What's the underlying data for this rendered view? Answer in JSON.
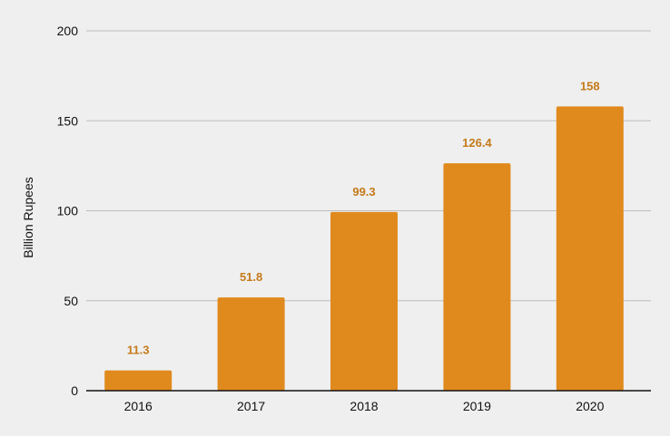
{
  "chart_data": {
    "type": "bar",
    "categories": [
      "2016",
      "2017",
      "2018",
      "2019",
      "2020"
    ],
    "values": [
      11.3,
      51.8,
      99.3,
      126.4,
      158
    ],
    "data_labels": [
      "11.3",
      "51.8",
      "99.3",
      "126.4",
      "158"
    ],
    "ylabel": "Billion Rupees",
    "ylim": [
      0,
      200
    ],
    "yticks": [
      0,
      50,
      100,
      150,
      200
    ],
    "ytick_labels": [
      "0",
      "50",
      "100",
      "150",
      "200"
    ],
    "grid": true,
    "legend": "none",
    "colors": {
      "bar": "#e08a1e",
      "data_label": "#c47a1a",
      "grid": "#bdbdbd",
      "axis": "#111111"
    }
  }
}
